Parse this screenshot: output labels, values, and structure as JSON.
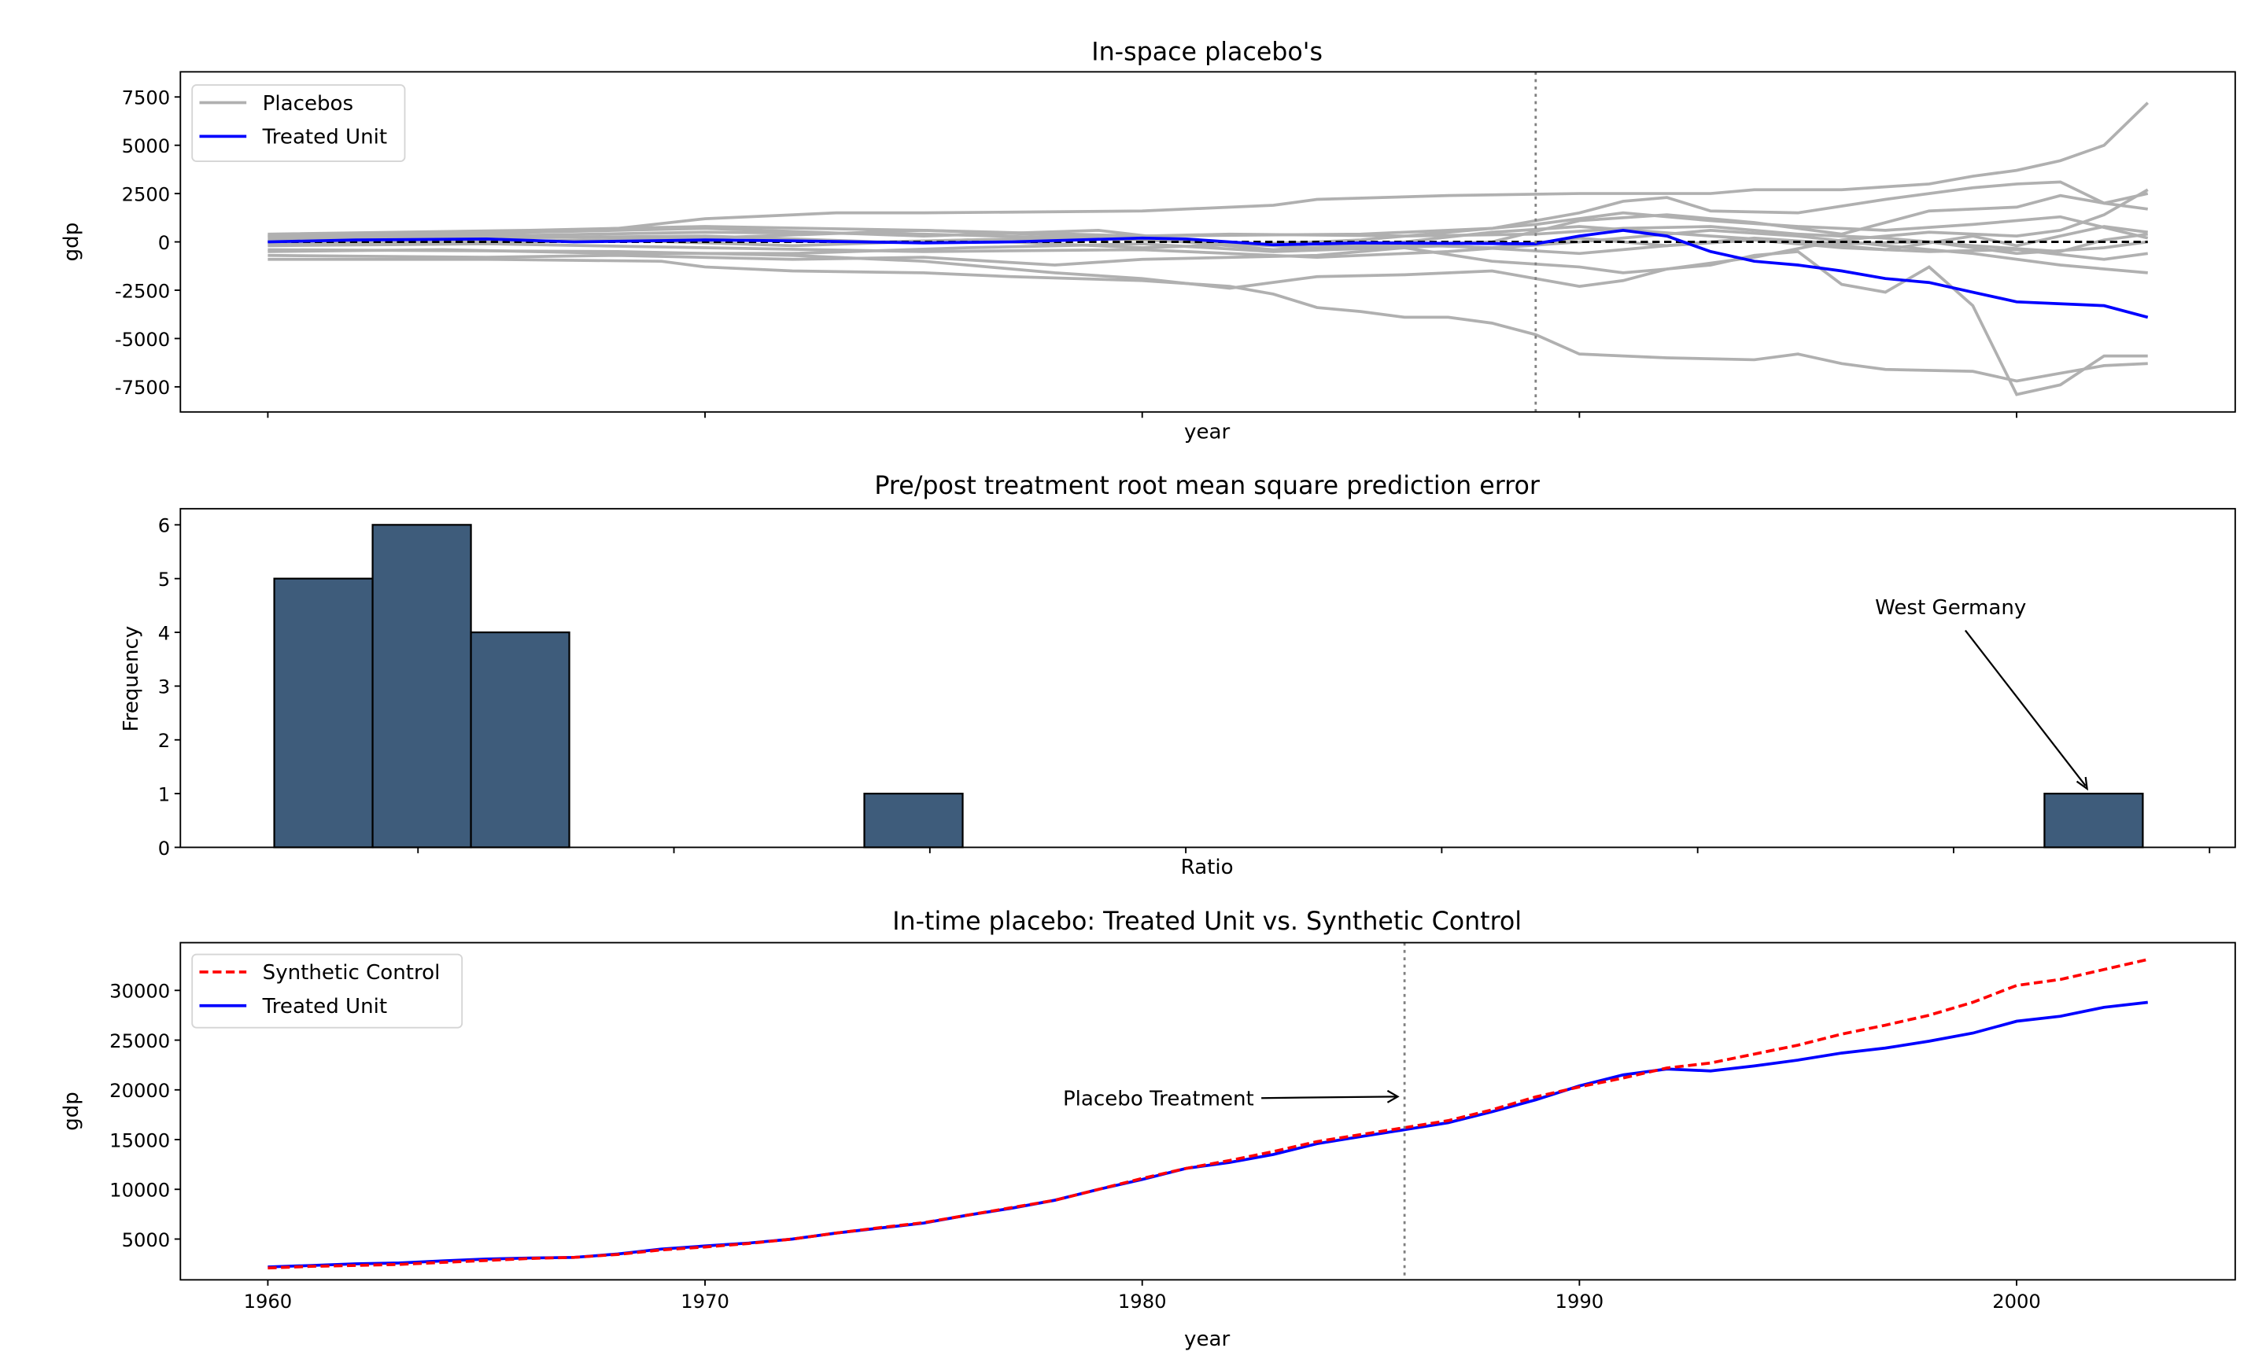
{
  "chart_data": [
    {
      "type": "line",
      "title": "In-space placebo's",
      "xlabel": "year",
      "ylabel": "gdp",
      "xlim": [
        1958,
        2005
      ],
      "ylim": [
        -8800,
        8800
      ],
      "yticks": [
        7500,
        5000,
        2500,
        0,
        -2500,
        -5000,
        -7500
      ],
      "xticks": [
        1960,
        1970,
        1980,
        1990,
        2000
      ],
      "treatment_year": 1989,
      "legend": {
        "placement": "top-left",
        "entries": [
          "Placebos",
          "Treated Unit"
        ]
      },
      "colors": {
        "placebos": "#b0b0b0",
        "treated": "#0000ff",
        "zero_line": "#000000",
        "treatment_line": "#808080"
      },
      "treated_unit": [
        [
          1960,
          0
        ],
        [
          1962,
          100
        ],
        [
          1965,
          150
        ],
        [
          1967,
          0
        ],
        [
          1970,
          100
        ],
        [
          1972,
          50
        ],
        [
          1975,
          -50
        ],
        [
          1977,
          0
        ],
        [
          1980,
          200
        ],
        [
          1981,
          150
        ],
        [
          1983,
          -150
        ],
        [
          1985,
          -50
        ],
        [
          1989,
          -100
        ],
        [
          1990,
          300
        ],
        [
          1991,
          600
        ],
        [
          1992,
          300
        ],
        [
          1993,
          -500
        ],
        [
          1994,
          -1000
        ],
        [
          1995,
          -1200
        ],
        [
          1996,
          -1500
        ],
        [
          1997,
          -1900
        ],
        [
          1998,
          -2100
        ],
        [
          1999,
          -2600
        ],
        [
          2000,
          -3100
        ],
        [
          2001,
          -3200
        ],
        [
          2002,
          -3300
        ],
        [
          2003,
          -3900
        ]
      ],
      "placebos": [
        [
          [
            1960,
            300
          ],
          [
            1965,
            400
          ],
          [
            1968,
            700
          ],
          [
            1970,
            1200
          ],
          [
            1973,
            1500
          ],
          [
            1975,
            1500
          ],
          [
            1980,
            1600
          ],
          [
            1983,
            1900
          ],
          [
            1984,
            2200
          ],
          [
            1987,
            2400
          ],
          [
            1990,
            2500
          ],
          [
            1993,
            2500
          ],
          [
            1994,
            2700
          ],
          [
            1996,
            2700
          ],
          [
            1998,
            3000
          ],
          [
            1999,
            3400
          ],
          [
            2000,
            3700
          ],
          [
            2001,
            4200
          ],
          [
            2002,
            5000
          ],
          [
            2003,
            7200
          ]
        ],
        [
          [
            1960,
            -900
          ],
          [
            1965,
            -900
          ],
          [
            1969,
            -1000
          ],
          [
            1970,
            -1300
          ],
          [
            1972,
            -1500
          ],
          [
            1975,
            -1600
          ],
          [
            1977,
            -1800
          ],
          [
            1980,
            -2000
          ],
          [
            1982,
            -2300
          ],
          [
            1983,
            -2700
          ],
          [
            1984,
            -3400
          ],
          [
            1985,
            -3600
          ],
          [
            1986,
            -3900
          ],
          [
            1987,
            -3900
          ],
          [
            1988,
            -4200
          ],
          [
            1989,
            -4800
          ],
          [
            1990,
            -5800
          ],
          [
            1992,
            -6000
          ],
          [
            1994,
            -6100
          ],
          [
            1995,
            -5800
          ],
          [
            1996,
            -6300
          ],
          [
            1997,
            -6600
          ],
          [
            1999,
            -6700
          ],
          [
            2000,
            -7200
          ],
          [
            2001,
            -6800
          ],
          [
            2002,
            -6400
          ],
          [
            2003,
            -6300
          ]
        ],
        [
          [
            1960,
            -400
          ],
          [
            1968,
            -500
          ],
          [
            1972,
            -700
          ],
          [
            1975,
            -1000
          ],
          [
            1978,
            -1600
          ],
          [
            1980,
            -1900
          ],
          [
            1982,
            -2400
          ],
          [
            1984,
            -1800
          ],
          [
            1986,
            -1700
          ],
          [
            1988,
            -1500
          ],
          [
            1990,
            -2300
          ],
          [
            1991,
            -2000
          ],
          [
            1992,
            -1400
          ],
          [
            1993,
            -1200
          ],
          [
            1994,
            -700
          ],
          [
            1995,
            -500
          ],
          [
            1996,
            -2200
          ],
          [
            1997,
            -2600
          ],
          [
            1998,
            -1300
          ],
          [
            1999,
            -3300
          ],
          [
            2000,
            -7900
          ],
          [
            2001,
            -7400
          ],
          [
            2002,
            -5900
          ],
          [
            2003,
            -5900
          ]
        ],
        [
          [
            1960,
            400
          ],
          [
            1966,
            600
          ],
          [
            1970,
            800
          ],
          [
            1975,
            600
          ],
          [
            1980,
            300
          ],
          [
            1985,
            400
          ],
          [
            1988,
            700
          ],
          [
            1990,
            1500
          ],
          [
            1991,
            2100
          ],
          [
            1992,
            2300
          ],
          [
            1993,
            1600
          ],
          [
            1995,
            1500
          ],
          [
            1997,
            2200
          ],
          [
            1999,
            2800
          ],
          [
            2000,
            3000
          ],
          [
            2001,
            3100
          ],
          [
            2002,
            2000
          ],
          [
            2003,
            2500
          ]
        ],
        [
          [
            1960,
            200
          ],
          [
            1965,
            300
          ],
          [
            1970,
            500
          ],
          [
            1975,
            400
          ],
          [
            1980,
            100
          ],
          [
            1984,
            -300
          ],
          [
            1988,
            0
          ],
          [
            1990,
            1100
          ],
          [
            1992,
            1400
          ],
          [
            1994,
            1000
          ],
          [
            1996,
            400
          ],
          [
            1998,
            1600
          ],
          [
            2000,
            1800
          ],
          [
            2001,
            2400
          ],
          [
            2002,
            2000
          ],
          [
            2003,
            1700
          ]
        ],
        [
          [
            1960,
            -700
          ],
          [
            1965,
            -800
          ],
          [
            1968,
            -700
          ],
          [
            1972,
            -900
          ],
          [
            1975,
            -800
          ],
          [
            1978,
            -1200
          ],
          [
            1980,
            -900
          ],
          [
            1984,
            -700
          ],
          [
            1986,
            -300
          ],
          [
            1988,
            -1000
          ],
          [
            1990,
            -1300
          ],
          [
            1991,
            -1600
          ],
          [
            1992,
            -1400
          ],
          [
            1994,
            -800
          ],
          [
            1996,
            100
          ],
          [
            1998,
            500
          ],
          [
            2000,
            300
          ],
          [
            2001,
            600
          ],
          [
            2002,
            1400
          ],
          [
            2003,
            2700
          ]
        ],
        [
          [
            1960,
            -200
          ],
          [
            1965,
            -100
          ],
          [
            1970,
            -300
          ],
          [
            1975,
            -500
          ],
          [
            1980,
            -400
          ],
          [
            1984,
            -800
          ],
          [
            1987,
            -500
          ],
          [
            1990,
            0
          ],
          [
            1993,
            600
          ],
          [
            1995,
            300
          ],
          [
            1997,
            -200
          ],
          [
            1999,
            -600
          ],
          [
            2001,
            -1200
          ],
          [
            2003,
            -1600
          ]
        ],
        [
          [
            1960,
            100
          ],
          [
            1965,
            200
          ],
          [
            1970,
            300
          ],
          [
            1974,
            0
          ],
          [
            1978,
            200
          ],
          [
            1982,
            400
          ],
          [
            1986,
            300
          ],
          [
            1989,
            400
          ],
          [
            1991,
            700
          ],
          [
            1993,
            800
          ],
          [
            1995,
            400
          ],
          [
            1997,
            200
          ],
          [
            1999,
            -200
          ],
          [
            2001,
            -500
          ],
          [
            2002,
            100
          ],
          [
            2003,
            400
          ]
        ],
        [
          [
            1960,
            -500
          ],
          [
            1964,
            -400
          ],
          [
            1968,
            -600
          ],
          [
            1972,
            -600
          ],
          [
            1976,
            -300
          ],
          [
            1980,
            -100
          ],
          [
            1983,
            -500
          ],
          [
            1987,
            -200
          ],
          [
            1990,
            -600
          ],
          [
            1992,
            -200
          ],
          [
            1994,
            100
          ],
          [
            1996,
            -300
          ],
          [
            1998,
            -500
          ],
          [
            2000,
            -400
          ],
          [
            2002,
            -900
          ],
          [
            2003,
            -600
          ]
        ],
        [
          [
            1960,
            -100
          ],
          [
            1965,
            0
          ],
          [
            1970,
            200
          ],
          [
            1975,
            600
          ],
          [
            1980,
            200
          ],
          [
            1983,
            -400
          ],
          [
            1986,
            0
          ],
          [
            1988,
            500
          ],
          [
            1990,
            800
          ],
          [
            1993,
            300
          ],
          [
            1995,
            0
          ],
          [
            1997,
            -400
          ],
          [
            1999,
            300
          ],
          [
            2000,
            -200
          ],
          [
            2001,
            300
          ],
          [
            2002,
            800
          ],
          [
            2003,
            500
          ]
        ],
        [
          [
            1960,
            300
          ],
          [
            1966,
            500
          ],
          [
            1970,
            700
          ],
          [
            1975,
            300
          ],
          [
            1979,
            600
          ],
          [
            1982,
            -200
          ],
          [
            1985,
            100
          ],
          [
            1989,
            900
          ],
          [
            1991,
            1500
          ],
          [
            1993,
            1100
          ],
          [
            1995,
            800
          ],
          [
            1997,
            600
          ],
          [
            1999,
            900
          ],
          [
            2001,
            1300
          ],
          [
            2003,
            200
          ]
        ],
        [
          [
            1960,
            0
          ],
          [
            1964,
            -100
          ],
          [
            1968,
            100
          ],
          [
            1972,
            -200
          ],
          [
            1976,
            100
          ],
          [
            1980,
            -300
          ],
          [
            1984,
            0
          ],
          [
            1988,
            -300
          ],
          [
            1990,
            200
          ],
          [
            1992,
            -200
          ],
          [
            1994,
            200
          ],
          [
            1996,
            -100
          ],
          [
            1998,
            0
          ],
          [
            2000,
            -600
          ],
          [
            2002,
            -300
          ],
          [
            2003,
            0
          ]
        ]
      ]
    },
    {
      "type": "bar",
      "title": "Pre/post treatment root mean square prediction error",
      "xlabel": "Ratio",
      "ylabel": "Frequency",
      "ylim": [
        0,
        6.3
      ],
      "yticks": [
        0,
        1,
        2,
        3,
        4,
        5,
        6
      ],
      "bins": 20,
      "bin_counts": [
        5,
        6,
        4,
        0,
        0,
        0,
        1,
        0,
        0,
        0,
        0,
        0,
        0,
        0,
        0,
        0,
        0,
        0,
        1,
        0
      ],
      "annotation": {
        "text": "West Germany",
        "bin": 18
      },
      "colors": {
        "bar": "#3e5c7b",
        "edge": "#000000"
      }
    },
    {
      "type": "line",
      "title": "In-time placebo: Treated Unit vs. Synthetic Control",
      "xlabel": "year",
      "ylabel": "gdp",
      "xlim": [
        1958,
        2005
      ],
      "ylim": [
        900,
        34800
      ],
      "yticks": [
        5000,
        10000,
        15000,
        20000,
        25000,
        30000
      ],
      "xticks": [
        1960,
        1970,
        1980,
        1990,
        2000
      ],
      "placebo_year": 1986,
      "annotation": {
        "text": "Placebo Treatment"
      },
      "legend": {
        "placement": "top-left",
        "entries": [
          "Synthetic Control",
          "Treated Unit"
        ]
      },
      "colors": {
        "synthetic": "#ff0000",
        "treated": "#0000ff",
        "placebo_line": "#808080"
      },
      "years": [
        1960,
        1961,
        1962,
        1963,
        1964,
        1965,
        1966,
        1967,
        1968,
        1969,
        1970,
        1971,
        1972,
        1973,
        1974,
        1975,
        1976,
        1977,
        1978,
        1979,
        1980,
        1981,
        1982,
        1983,
        1984,
        1985,
        1986,
        1987,
        1988,
        1989,
        1990,
        1991,
        1992,
        1993,
        1994,
        1995,
        1996,
        1997,
        1998,
        1999,
        2000,
        2001,
        2002,
        2003
      ],
      "treated": [
        2200,
        2350,
        2500,
        2600,
        2800,
        3000,
        3100,
        3150,
        3500,
        4000,
        4300,
        4600,
        5000,
        5600,
        6100,
        6600,
        7400,
        8100,
        8900,
        10000,
        11000,
        12100,
        12700,
        13500,
        14600,
        15300,
        16000,
        16700,
        17800,
        19000,
        20400,
        21500,
        22100,
        21900,
        22400,
        23000,
        23700,
        24200,
        24900,
        25700,
        26900,
        27400,
        28300,
        28800
      ],
      "synthetic": [
        2100,
        2250,
        2350,
        2450,
        2650,
        2850,
        3050,
        3150,
        3450,
        3900,
        4200,
        4550,
        5000,
        5600,
        6150,
        6650,
        7400,
        8150,
        8900,
        10000,
        11100,
        12100,
        12900,
        13800,
        14800,
        15500,
        16200,
        16900,
        18000,
        19300,
        20300,
        21200,
        22200,
        22700,
        23600,
        24500,
        25600,
        26500,
        27500,
        28800,
        30500,
        31100,
        32100,
        33100
      ]
    }
  ]
}
